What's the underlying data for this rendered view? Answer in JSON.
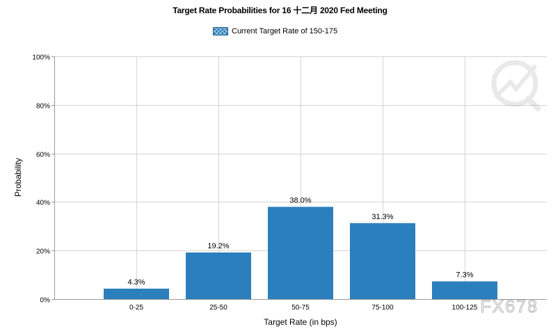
{
  "chart_data": {
    "type": "bar",
    "title": "Target Rate Probabilities for 16 十二月 2020  Fed Meeting",
    "legend": [
      "Current Target Rate of 150-175"
    ],
    "categories": [
      "0-25",
      "25-50",
      "50-75",
      "75-100",
      "100-125"
    ],
    "values": [
      4.3,
      19.2,
      38.0,
      31.3,
      7.3
    ],
    "data_labels": [
      "4.3%",
      "19.2%",
      "38.0%",
      "31.3%",
      "7.3%"
    ],
    "xlabel": "Target Rate (in bps)",
    "ylabel": "Probability",
    "ylim": [
      0,
      100
    ],
    "yticks": [
      0,
      20,
      40,
      60,
      80,
      100
    ],
    "ytick_labels": [
      "0%",
      "20%",
      "40%",
      "60%",
      "80%",
      "100%"
    ],
    "grid": true,
    "bar_color": "#2b7fbd"
  },
  "watermark": "FX678"
}
